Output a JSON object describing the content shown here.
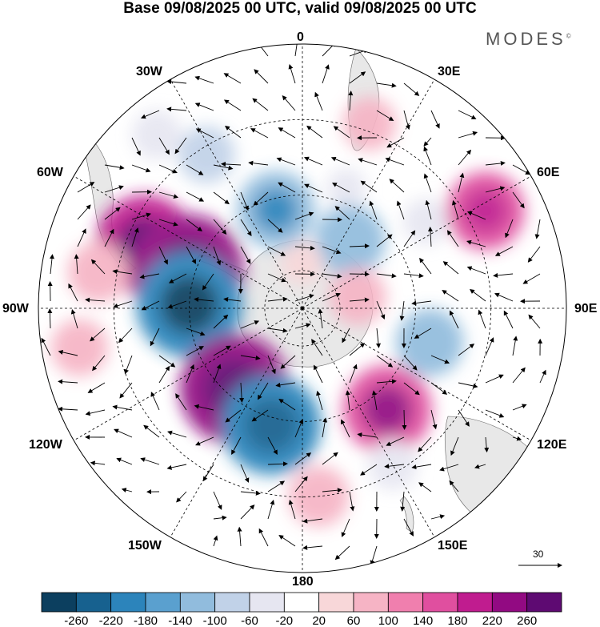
{
  "title": "Base 09/08/2025 00 UTC, valid 09/08/2025 00 UTC",
  "brand": "MODES",
  "brand_mark": "©",
  "longitude_labels": {
    "north": "0",
    "n30e": "30E",
    "n60e": "60E",
    "east": "90E",
    "s120e": "120E",
    "s150e": "150E",
    "south": "180",
    "s150w": "150W",
    "s120w": "120W",
    "west": "90W",
    "n60w": "60W",
    "n30w": "30W"
  },
  "reference_vector": {
    "label": "30"
  },
  "colorbar": {
    "tick_labels": [
      "-260",
      "-220",
      "-180",
      "-140",
      "-100",
      "-60",
      "-20",
      "20",
      "60",
      "100",
      "140",
      "180",
      "220",
      "260"
    ],
    "colors": [
      "#0c3f5f",
      "#17618f",
      "#2c84bb",
      "#5aa0cf",
      "#91bcdd",
      "#c1d2e8",
      "#e6e6f1",
      "#ffffff",
      "#f8d7d9",
      "#f6b4c5",
      "#f07fae",
      "#e04f9f",
      "#c01c8f",
      "#920a82",
      "#5e0a72"
    ]
  },
  "colors": {
    "land": "#e8e8e8",
    "background": "#ffffff"
  },
  "anomalies": [
    {
      "lon": 20,
      "lat": -38,
      "value": 70
    },
    {
      "lon": 55,
      "lat": -50,
      "value": -50
    },
    {
      "lon": 20,
      "lat": -56,
      "value": -30
    },
    {
      "lon": 35,
      "lat": -68,
      "value": -120
    },
    {
      "lon": -15,
      "lat": -63,
      "value": -140
    },
    {
      "lon": -32,
      "lat": -42,
      "value": -80
    },
    {
      "lon": -40,
      "lat": -30,
      "value": -60
    },
    {
      "lon": -68,
      "lat": -45,
      "value": 200
    },
    {
      "lon": -80,
      "lat": -35,
      "value": 90
    },
    {
      "lon": -72,
      "lat": -58,
      "value": 240
    },
    {
      "lon": -88,
      "lat": -60,
      "value": -220
    },
    {
      "lon": -100,
      "lat": -30,
      "value": 80
    },
    {
      "lon": -140,
      "lat": -62,
      "value": 230
    },
    {
      "lon": -165,
      "lat": -58,
      "value": -200
    },
    {
      "lon": 175,
      "lat": -40,
      "value": 90
    },
    {
      "lon": 140,
      "lat": -55,
      "value": 170
    },
    {
      "lon": 150,
      "lat": -42,
      "value": -60
    },
    {
      "lon": 105,
      "lat": -55,
      "value": -110
    },
    {
      "lon": 62,
      "lat": -35,
      "value": 140
    },
    {
      "lon": 78,
      "lat": -75,
      "value": 80
    },
    {
      "lon": 0,
      "lat": -78,
      "value": 40
    }
  ]
}
